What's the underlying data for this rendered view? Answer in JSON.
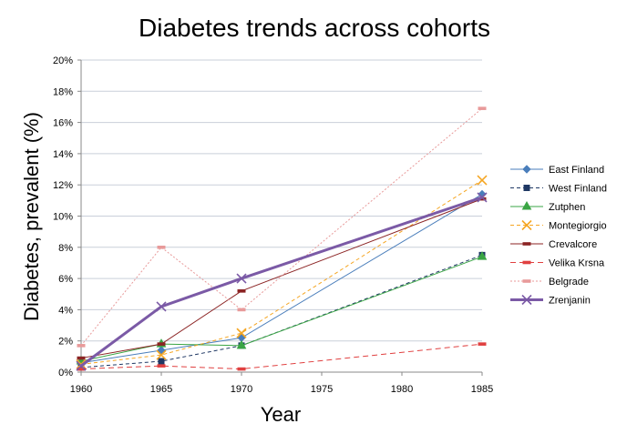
{
  "chart_data": {
    "type": "line",
    "title": "Diabetes trends across cohorts",
    "xlabel": "Year",
    "ylabel": "Diabetes, prevalent (%)",
    "xlim": [
      1960,
      1985
    ],
    "ylim": [
      0,
      20
    ],
    "x_ticks": [
      "1960",
      "1965",
      "1970",
      "1975",
      "1980",
      "1985"
    ],
    "y_ticks": [
      "0%",
      "2%",
      "4%",
      "6%",
      "8%",
      "10%",
      "12%",
      "14%",
      "16%",
      "18%",
      "20%"
    ],
    "grid": "horizontal",
    "legend_position": "right",
    "series": [
      {
        "name": "East Finland",
        "color": "#4a7ebb",
        "dash": "",
        "width": 1,
        "marker": "diamond",
        "x": [
          1960,
          1965,
          1970,
          1985
        ],
        "y": [
          0.6,
          1.4,
          2.2,
          11.4
        ]
      },
      {
        "name": "West Finland",
        "color": "#1f3864",
        "dash": "4,3",
        "width": 1,
        "marker": "square",
        "x": [
          1960,
          1965,
          1970,
          1985
        ],
        "y": [
          0.3,
          0.7,
          1.7,
          7.5
        ]
      },
      {
        "name": "Zutphen",
        "color": "#3aa544",
        "dash": "",
        "width": 1,
        "marker": "triangle",
        "x": [
          1960,
          1965,
          1970,
          1985
        ],
        "y": [
          0.7,
          1.8,
          1.7,
          7.4
        ]
      },
      {
        "name": "Montegiorgio",
        "color": "#f5a623",
        "dash": "4,3",
        "width": 1,
        "marker": "x",
        "x": [
          1960,
          1965,
          1970,
          1985
        ],
        "y": [
          0.5,
          1.1,
          2.5,
          12.3
        ]
      },
      {
        "name": "Crevalcore",
        "color": "#8b2323",
        "dash": "",
        "width": 1,
        "marker": "dash",
        "x": [
          1960,
          1965,
          1970,
          1985
        ],
        "y": [
          0.9,
          1.8,
          5.2,
          11.1
        ]
      },
      {
        "name": "Velika Krsna",
        "color": "#e04040",
        "dash": "6,4",
        "width": 1,
        "marker": "dash",
        "x": [
          1960,
          1965,
          1970,
          1985
        ],
        "y": [
          0.2,
          0.4,
          0.2,
          1.8
        ]
      },
      {
        "name": "Belgrade",
        "color": "#e89a9a",
        "dash": "2,2",
        "width": 1,
        "marker": "dash",
        "x": [
          1960,
          1965,
          1970,
          1985
        ],
        "y": [
          1.7,
          8.0,
          4.0,
          16.9
        ]
      },
      {
        "name": "Zrenjanin",
        "color": "#7b5aa6",
        "dash": "",
        "width": 3,
        "marker": "x",
        "x": [
          1960,
          1965,
          1970,
          1985
        ],
        "y": [
          0.4,
          4.2,
          6.0,
          11.2
        ]
      }
    ]
  }
}
